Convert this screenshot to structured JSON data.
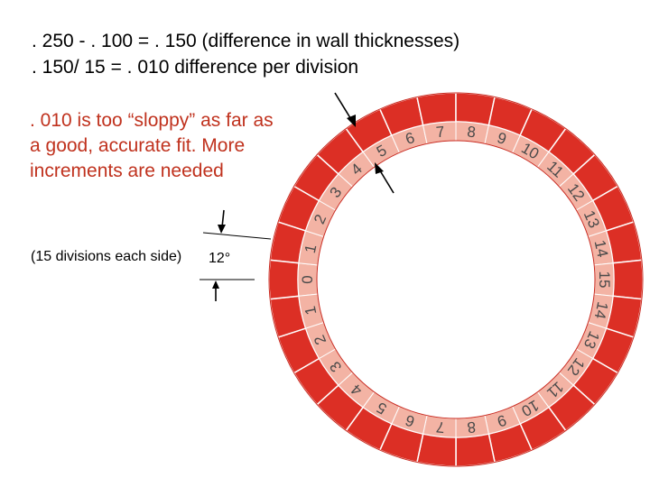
{
  "text": {
    "line1": ". 250 - . 100 = . 150 (difference in wall thicknesses)",
    "line2": ". 150/ 15 = . 010 difference per division",
    "note_lines": [
      ". 010 is too “sloppy” as far as",
      "a good, accurate fit.  More",
      "increments are needed"
    ],
    "divisions_label": "(15 divisions each side)",
    "angle_label": "12°"
  },
  "dial": {
    "left_numbers": [
      "0",
      "1",
      "2",
      "3",
      "4",
      "5",
      "6",
      "7",
      "8",
      "9",
      "10",
      "11",
      "12",
      "13",
      "14",
      "15",
      "14",
      "13",
      "12",
      "11",
      "10",
      "9",
      "8",
      "7",
      "6",
      "5",
      "4",
      "3",
      "2",
      "1"
    ],
    "segments": 30,
    "outer_color": "#dc2f25",
    "inner_color": "#f3b3a4",
    "seam_color": "#ffffff",
    "pointer_color": "#000000"
  }
}
